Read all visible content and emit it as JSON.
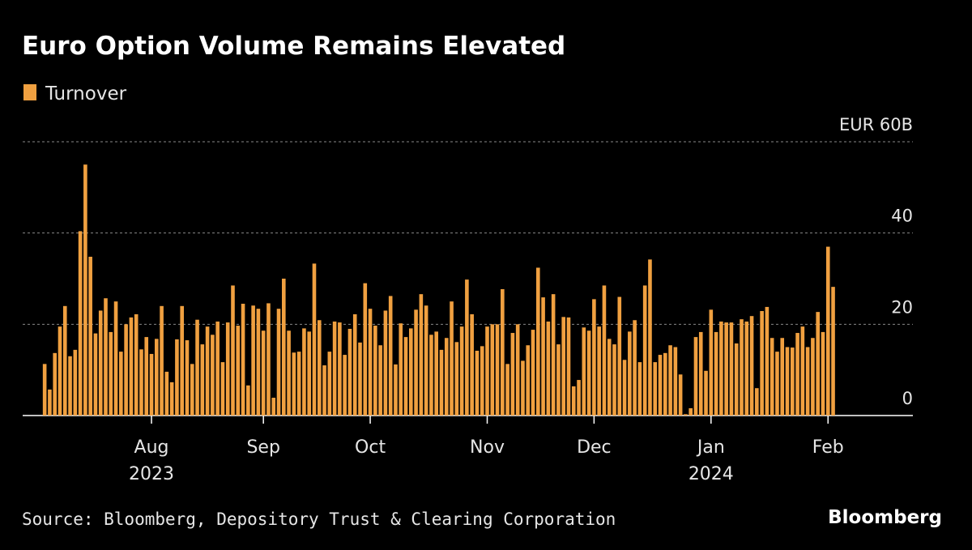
{
  "chart_data": {
    "type": "bar",
    "title": "Euro Option Volume Remains Elevated",
    "source": "Source: Bloomberg, Depository Trust & Clearing Corporation",
    "brand": "Bloomberg",
    "categories": [
      null,
      null,
      null,
      null,
      null,
      null,
      null,
      null,
      null,
      null,
      null,
      null,
      null,
      null,
      null,
      null,
      null,
      null,
      null,
      null,
      null,
      "Aug",
      null,
      null,
      null,
      null,
      null,
      null,
      null,
      null,
      null,
      null,
      null,
      null,
      null,
      null,
      null,
      null,
      null,
      null,
      null,
      null,
      null,
      "Sep",
      null,
      null,
      null,
      null,
      null,
      null,
      null,
      null,
      null,
      null,
      null,
      null,
      null,
      null,
      null,
      null,
      null,
      null,
      null,
      null,
      "Oct",
      null,
      null,
      null,
      null,
      null,
      null,
      null,
      null,
      null,
      null,
      null,
      null,
      null,
      null,
      null,
      null,
      null,
      null,
      null,
      null,
      null,
      null,
      "Nov",
      null,
      null,
      null,
      null,
      null,
      null,
      null,
      null,
      null,
      null,
      null,
      null,
      null,
      null,
      null,
      null,
      null,
      null,
      null,
      null,
      "Dec",
      null,
      null,
      null,
      null,
      null,
      null,
      null,
      null,
      null,
      null,
      null,
      null,
      null,
      null,
      null,
      null,
      null,
      null,
      null,
      null,
      null,
      null,
      "Jan",
      null,
      null,
      null,
      null,
      null,
      null,
      null,
      null,
      null,
      null,
      null,
      null,
      null,
      null,
      null,
      null,
      null,
      null,
      null,
      null,
      null,
      null,
      "Feb",
      null
    ],
    "x_sublabels": [
      null,
      null,
      null,
      null,
      null,
      null,
      null,
      null,
      null,
      null,
      null,
      null,
      null,
      null,
      null,
      null,
      null,
      null,
      null,
      null,
      null,
      "2023",
      null,
      null,
      null,
      null,
      null,
      null,
      null,
      null,
      null,
      null,
      null,
      null,
      null,
      null,
      null,
      null,
      null,
      null,
      null,
      null,
      null,
      null,
      null,
      null,
      null,
      null,
      null,
      null,
      null,
      null,
      null,
      null,
      null,
      null,
      null,
      null,
      null,
      null,
      null,
      null,
      null,
      null,
      null,
      null,
      null,
      null,
      null,
      null,
      null,
      null,
      null,
      null,
      null,
      null,
      null,
      null,
      null,
      null,
      null,
      null,
      null,
      null,
      null,
      null,
      null,
      null,
      null,
      null,
      null,
      null,
      null,
      null,
      null,
      null,
      null,
      null,
      null,
      null,
      null,
      null,
      null,
      null,
      null,
      null,
      null,
      null,
      null,
      null,
      null,
      null,
      null,
      null,
      null,
      null,
      null,
      null,
      null,
      null,
      null,
      null,
      null,
      null,
      null,
      null,
      null,
      null,
      null,
      null,
      null,
      "2024",
      null,
      null,
      null,
      null,
      null,
      null,
      null,
      null,
      null,
      null,
      null,
      null,
      null,
      null,
      null,
      null,
      null,
      null,
      null,
      null,
      null,
      null,
      null,
      null
    ],
    "series": [
      {
        "name": "Turnover",
        "color": "#f0a040",
        "values": [
          11.3,
          5.7,
          13.7,
          19.5,
          24,
          13,
          14.4,
          40.4,
          55,
          34.8,
          18,
          23,
          25.7,
          18.3,
          25,
          14,
          20,
          21.5,
          22.2,
          14.5,
          17.2,
          13.5,
          16.8,
          24,
          9.6,
          7.3,
          16.7,
          24,
          16.5,
          11.3,
          21,
          15.6,
          19.5,
          17.7,
          20.6,
          11.7,
          20.4,
          28.5,
          19.7,
          24.5,
          6.6,
          24.1,
          23.4,
          18.6,
          24.6,
          3.9,
          23.4,
          30,
          18.6,
          13.8,
          14,
          19.1,
          18.4,
          33.3,
          20.9,
          11,
          14,
          20.6,
          20.4,
          13.3,
          19,
          22.2,
          16,
          29,
          23.4,
          19.7,
          15.4,
          23,
          26.2,
          11.2,
          20.2,
          17.2,
          19.1,
          23.2,
          26.6,
          24.1,
          17.7,
          18.4,
          14.4,
          17,
          25,
          16.1,
          19.5,
          29.8,
          22.2,
          14.2,
          15.2,
          19.5,
          20,
          20,
          27.7,
          11.3,
          18.1,
          20,
          12,
          15.4,
          18.8,
          32.4,
          25.9,
          20.6,
          26.6,
          15.6,
          21.6,
          21.5,
          6.4,
          7.8,
          19.3,
          18.6,
          25.5,
          19.5,
          28.5,
          16.8,
          15.6,
          26,
          12.2,
          18.4,
          20.9,
          11.7,
          28.5,
          34.2,
          11.7,
          13.3,
          13.7,
          15.4,
          15,
          9,
          0.3,
          1.6,
          17.2,
          18.3,
          9.8,
          23.2,
          18.3,
          20.6,
          20.4,
          20.4,
          15.8,
          21.1,
          20.6,
          21.8,
          6,
          22.9,
          23.8,
          17,
          14,
          17,
          15,
          14.9,
          18.1,
          19.5,
          15,
          17,
          22.7,
          18.3,
          37,
          28.2
        ]
      }
    ],
    "ylim": [
      0,
      60
    ],
    "yticks": [
      0,
      20,
      40,
      {
        "value": 60,
        "label": "EUR 60B"
      }
    ],
    "grid": true
  }
}
